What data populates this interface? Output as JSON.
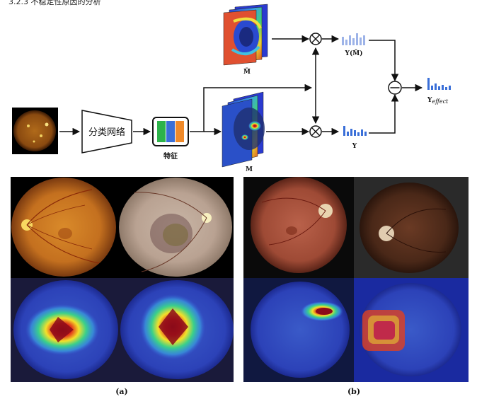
{
  "header_text": "3.2.3 不稳定性原因的分析",
  "pipeline": {
    "classifier_label": "分类网络",
    "feature_label": "特征",
    "mask_label": "M",
    "mask_bar_label": "M̄",
    "y_label": "Y",
    "y_bar_label": "Y(M̄)",
    "effect_label": "Y",
    "effect_subscript": "effect",
    "feature_colors": [
      "#2db34a",
      "#3a6fd8",
      "#f08a2a"
    ]
  },
  "panels": {
    "a_label": "(a)",
    "b_label": "(b)"
  },
  "icons": {
    "multiply": "circle-times-icon",
    "subtract": "circle-minus-icon",
    "histogram": "bar-histogram-icon"
  },
  "colors": {
    "arrow": "#111111",
    "histogram_blue": "#3a6fd8",
    "histogram_light": "#9db3e8"
  }
}
